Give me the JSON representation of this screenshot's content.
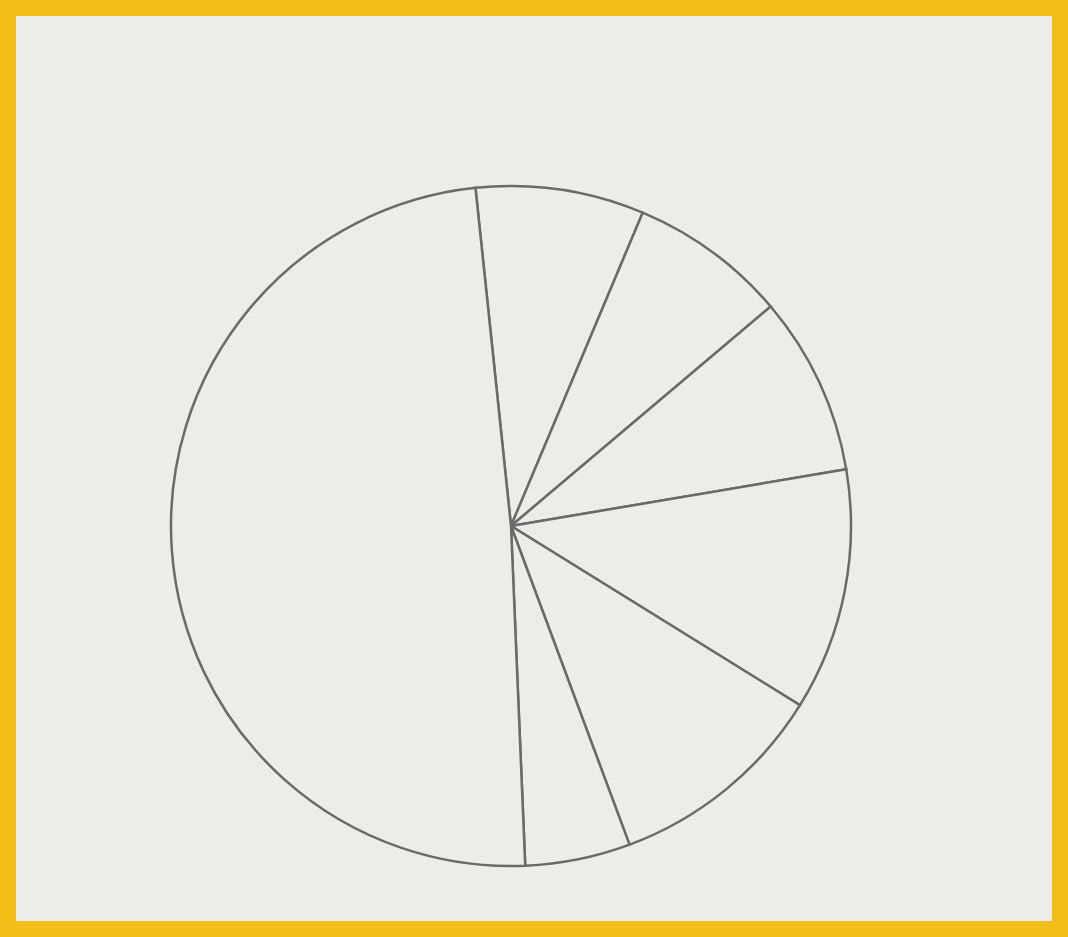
{
  "chart_data": {
    "type": "pie",
    "values": [
      8,
      7.5,
      8.5,
      11.5,
      10.5,
      5,
      49
    ],
    "colors": [
      "#ececea",
      "#ececea",
      "#ececea",
      "#ececea",
      "#ececea",
      "#ececea",
      "#ececea"
    ],
    "data_labels": false
  }
}
